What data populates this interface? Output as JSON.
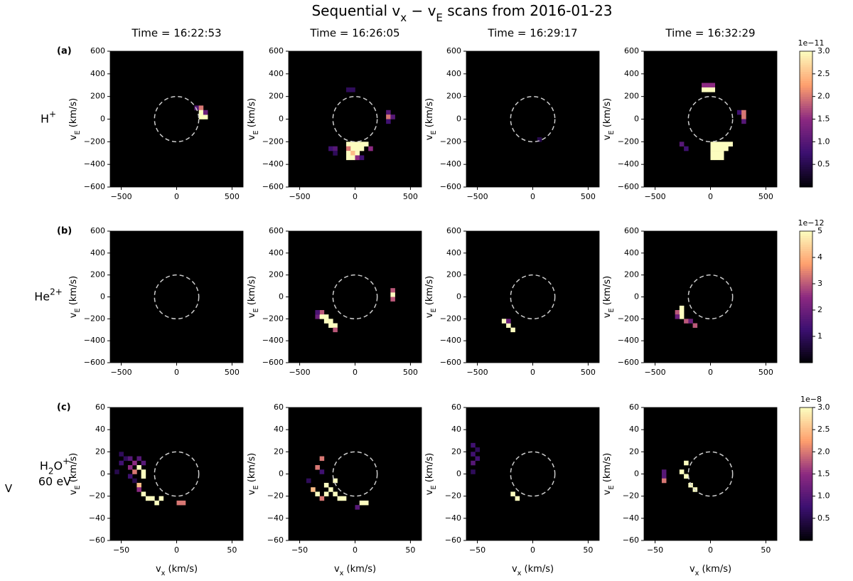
{
  "title": [
    {
      "text": "Sequential v"
    },
    {
      "text": "x",
      "sub": true
    },
    {
      "text": " − v"
    },
    {
      "text": "E",
      "sub": true
    },
    {
      "text": " scans from 2016-01-23"
    }
  ],
  "column_titles": [
    "Time = 16:22:53",
    "Time = 16:26:05",
    "Time = 16:29:17",
    "Time = 16:32:29"
  ],
  "chart_data": [
    {
      "type": "heatmap",
      "panel_label": "(a)",
      "row_label": [
        [
          {
            "text": "H"
          },
          {
            "text": "+",
            "sup": true
          }
        ]
      ],
      "ylabel": [
        {
          "text": "v"
        },
        {
          "text": "E",
          "sub": true
        },
        {
          "text": " (km/s)"
        }
      ],
      "xlim": [
        -600,
        600
      ],
      "ylim": [
        -600,
        600
      ],
      "xticks": [
        {
          "value": -500,
          "label": "−500"
        },
        0,
        500
      ],
      "yticks": [
        {
          "value": -600,
          "label": "−600"
        },
        {
          "value": -400,
          "label": "−400"
        },
        {
          "value": -200,
          "label": "−200"
        },
        0,
        200,
        400,
        600
      ],
      "cell_size": 40,
      "circle_radius": 200,
      "colorbar": {
        "offset_label": "1e−11",
        "lim": [
          0,
          3
        ],
        "ticks": [
          0.5,
          {
            "value": 1,
            "label": "1.0"
          },
          1.5,
          {
            "value": 2,
            "label": "2.0"
          },
          2.5,
          {
            "value": 3,
            "label": "3.0"
          }
        ]
      },
      "panels": [
        [
          [
            160,
            80,
            1.0
          ],
          [
            200,
            80,
            2.0
          ],
          [
            200,
            40,
            3
          ],
          [
            200,
            0,
            3
          ],
          [
            240,
            0,
            3
          ],
          [
            240,
            40,
            1.2
          ]
        ],
        [
          [
            -80,
            240,
            0.6
          ],
          [
            -40,
            240,
            0.6
          ],
          [
            280,
            40,
            1.0
          ],
          [
            280,
            0,
            2.0
          ],
          [
            320,
            0,
            1.0
          ],
          [
            280,
            -40,
            0.8
          ],
          [
            -240,
            -280,
            0.8
          ],
          [
            -200,
            -280,
            1.0
          ],
          [
            -200,
            -320,
            0.6
          ],
          [
            -80,
            -240,
            3
          ],
          [
            -40,
            -240,
            3
          ],
          [
            0,
            -240,
            3
          ],
          [
            40,
            -240,
            3
          ],
          [
            80,
            -240,
            3
          ],
          [
            -80,
            -280,
            2.0
          ],
          [
            -40,
            -280,
            3
          ],
          [
            0,
            -280,
            3
          ],
          [
            40,
            -280,
            3
          ],
          [
            120,
            -280,
            1.5
          ],
          [
            -80,
            -320,
            3
          ],
          [
            -40,
            -320,
            2.5
          ],
          [
            0,
            -320,
            3
          ],
          [
            -80,
            -360,
            3
          ],
          [
            -40,
            -360,
            3
          ],
          [
            0,
            -360,
            1.5
          ],
          [
            40,
            -360,
            0.8
          ]
        ],
        [
          [
            40,
            -200,
            0.5
          ]
        ],
        [
          [
            -80,
            280,
            1.5
          ],
          [
            -40,
            280,
            1.5
          ],
          [
            0,
            280,
            1.5
          ],
          [
            -80,
            240,
            3
          ],
          [
            -40,
            240,
            3
          ],
          [
            0,
            240,
            3
          ],
          [
            240,
            40,
            0.8
          ],
          [
            280,
            40,
            2
          ],
          [
            280,
            0,
            2
          ],
          [
            280,
            -40,
            1.0
          ],
          [
            -280,
            -240,
            1
          ],
          [
            -240,
            -280,
            0.8
          ],
          [
            0,
            -240,
            3
          ],
          [
            40,
            -240,
            3
          ],
          [
            80,
            -240,
            3
          ],
          [
            120,
            -240,
            3
          ],
          [
            160,
            -240,
            3
          ],
          [
            0,
            -280,
            3
          ],
          [
            40,
            -280,
            3
          ],
          [
            80,
            -280,
            3
          ],
          [
            120,
            -280,
            3
          ],
          [
            0,
            -320,
            3
          ],
          [
            40,
            -320,
            3
          ],
          [
            80,
            -320,
            3
          ],
          [
            0,
            -360,
            3
          ],
          [
            40,
            -360,
            3
          ],
          [
            80,
            -360,
            3
          ]
        ]
      ]
    },
    {
      "type": "heatmap",
      "panel_label": "(b)",
      "row_label": [
        [
          {
            "text": "He"
          },
          {
            "text": "2+",
            "sup": true
          }
        ]
      ],
      "ylabel": [
        {
          "text": "v"
        },
        {
          "text": "E",
          "sub": true
        },
        {
          "text": " (km/s)"
        }
      ],
      "xlim": [
        -600,
        600
      ],
      "ylim": [
        -600,
        600
      ],
      "xticks": [
        {
          "value": -500,
          "label": "−500"
        },
        0,
        500
      ],
      "yticks": [
        {
          "value": -600,
          "label": "−600"
        },
        {
          "value": -400,
          "label": "−400"
        },
        {
          "value": -200,
          "label": "−200"
        },
        0,
        200,
        400,
        600
      ],
      "cell_size": 40,
      "circle_radius": 200,
      "colorbar": {
        "offset_label": "1e−12",
        "lim": [
          0,
          5
        ],
        "ticks": [
          1,
          2,
          3,
          4,
          5
        ]
      },
      "panels": [
        [],
        [
          [
            -360,
            -200,
            2
          ],
          [
            -320,
            -160,
            3
          ],
          [
            -320,
            -200,
            5
          ],
          [
            -280,
            -200,
            5
          ],
          [
            -280,
            -240,
            5
          ],
          [
            -240,
            -240,
            5
          ],
          [
            -240,
            -280,
            5
          ],
          [
            -200,
            -280,
            5
          ],
          [
            -200,
            -320,
            3
          ],
          [
            -360,
            -160,
            1.5
          ],
          [
            320,
            40,
            3
          ],
          [
            320,
            0,
            5
          ],
          [
            320,
            -40,
            3
          ]
        ],
        [
          [
            -280,
            -240,
            5
          ],
          [
            -240,
            -280,
            5
          ],
          [
            -200,
            -320,
            5
          ],
          [
            -240,
            -240,
            2
          ]
        ],
        [
          [
            -320,
            -160,
            3
          ],
          [
            -280,
            -120,
            5
          ],
          [
            -280,
            -160,
            5
          ],
          [
            -280,
            -200,
            5
          ],
          [
            -320,
            -200,
            2
          ],
          [
            -240,
            -240,
            3
          ],
          [
            -200,
            -240,
            2
          ],
          [
            -160,
            -280,
            3
          ]
        ]
      ]
    },
    {
      "type": "heatmap",
      "panel_label": "(c)",
      "row_marker": "V",
      "row_label": [
        [
          {
            "text": "H"
          },
          {
            "text": "2",
            "sub": true
          },
          {
            "text": "O"
          },
          {
            "text": "+",
            "sup": true
          }
        ],
        [
          {
            "text": "60 eV"
          }
        ]
      ],
      "ylabel": [
        {
          "text": "v"
        },
        {
          "text": "E",
          "sub": true
        },
        {
          "text": " (km/s)"
        }
      ],
      "xlabel": [
        {
          "text": "v"
        },
        {
          "text": "x",
          "sub": true
        },
        {
          "text": " (km/s)"
        }
      ],
      "xlim": [
        -60,
        60
      ],
      "ylim": [
        -60,
        60
      ],
      "xticks": [
        {
          "value": -50,
          "label": "−50"
        },
        0,
        50
      ],
      "yticks": [
        {
          "value": -60,
          "label": "−60"
        },
        {
          "value": -40,
          "label": "−40"
        },
        {
          "value": -20,
          "label": "−20"
        },
        0,
        20,
        40,
        60
      ],
      "cell_size": 4,
      "circle_radius": 20,
      "colorbar": {
        "offset_label": "1e−8",
        "lim": [
          0,
          3
        ],
        "ticks": [
          0.5,
          {
            "value": 1,
            "label": "1.0"
          },
          1.5,
          {
            "value": 2,
            "label": "2.0"
          },
          2.5,
          {
            "value": 3,
            "label": "3.0"
          }
        ]
      },
      "panels": [
        [
          [
            -52,
            16,
            0.6
          ],
          [
            -52,
            8,
            0.8
          ],
          [
            -48,
            12,
            0.6
          ],
          [
            -44,
            12,
            1.0
          ],
          [
            -44,
            4,
            1.5
          ],
          [
            -44,
            -4,
            0.8
          ],
          [
            -40,
            8,
            1.5
          ],
          [
            -40,
            0,
            2
          ],
          [
            -40,
            -8,
            0.5
          ],
          [
            -36,
            12,
            1.0
          ],
          [
            -36,
            4,
            3
          ],
          [
            -36,
            -12,
            2.5
          ],
          [
            -36,
            -16,
            1.5
          ],
          [
            -32,
            8,
            1
          ],
          [
            -32,
            0,
            3
          ],
          [
            -32,
            -4,
            3
          ],
          [
            -32,
            -20,
            3
          ],
          [
            -28,
            -24,
            3
          ],
          [
            -24,
            -24,
            3
          ],
          [
            -20,
            -28,
            3
          ],
          [
            -16,
            -24,
            3
          ],
          [
            0,
            -28,
            2.0
          ],
          [
            4,
            -28,
            2.0
          ],
          [
            -56,
            0,
            0.5
          ]
        ],
        [
          [
            -40,
            -16,
            2.5
          ],
          [
            -36,
            -20,
            3
          ],
          [
            -32,
            -24,
            2
          ],
          [
            -36,
            4,
            2
          ],
          [
            -32,
            12,
            2
          ],
          [
            -32,
            0,
            0.8
          ],
          [
            -28,
            -12,
            3
          ],
          [
            -28,
            -20,
            3
          ],
          [
            -24,
            -16,
            3
          ],
          [
            -20,
            -8,
            3
          ],
          [
            -20,
            -20,
            3
          ],
          [
            -16,
            -24,
            3
          ],
          [
            -12,
            -24,
            3
          ],
          [
            0,
            -32,
            1
          ],
          [
            4,
            -28,
            3
          ],
          [
            8,
            -28,
            3
          ],
          [
            -44,
            -8,
            0.6
          ]
        ],
        [
          [
            -56,
            24,
            0.8
          ],
          [
            -56,
            16,
            0.8
          ],
          [
            -56,
            8,
            1
          ],
          [
            -52,
            20,
            0.6
          ],
          [
            -52,
            12,
            0.8
          ],
          [
            -56,
            0,
            0.6
          ],
          [
            -20,
            -20,
            3
          ],
          [
            -16,
            -24,
            3
          ]
        ],
        [
          [
            -44,
            0,
            1.0
          ],
          [
            -44,
            -4,
            1.0
          ],
          [
            -44,
            -8,
            2.0
          ],
          [
            -24,
            8,
            3
          ],
          [
            -24,
            -4,
            3
          ],
          [
            -28,
            0,
            3
          ],
          [
            -20,
            -12,
            3
          ],
          [
            -16,
            -16,
            3
          ]
        ]
      ]
    }
  ]
}
